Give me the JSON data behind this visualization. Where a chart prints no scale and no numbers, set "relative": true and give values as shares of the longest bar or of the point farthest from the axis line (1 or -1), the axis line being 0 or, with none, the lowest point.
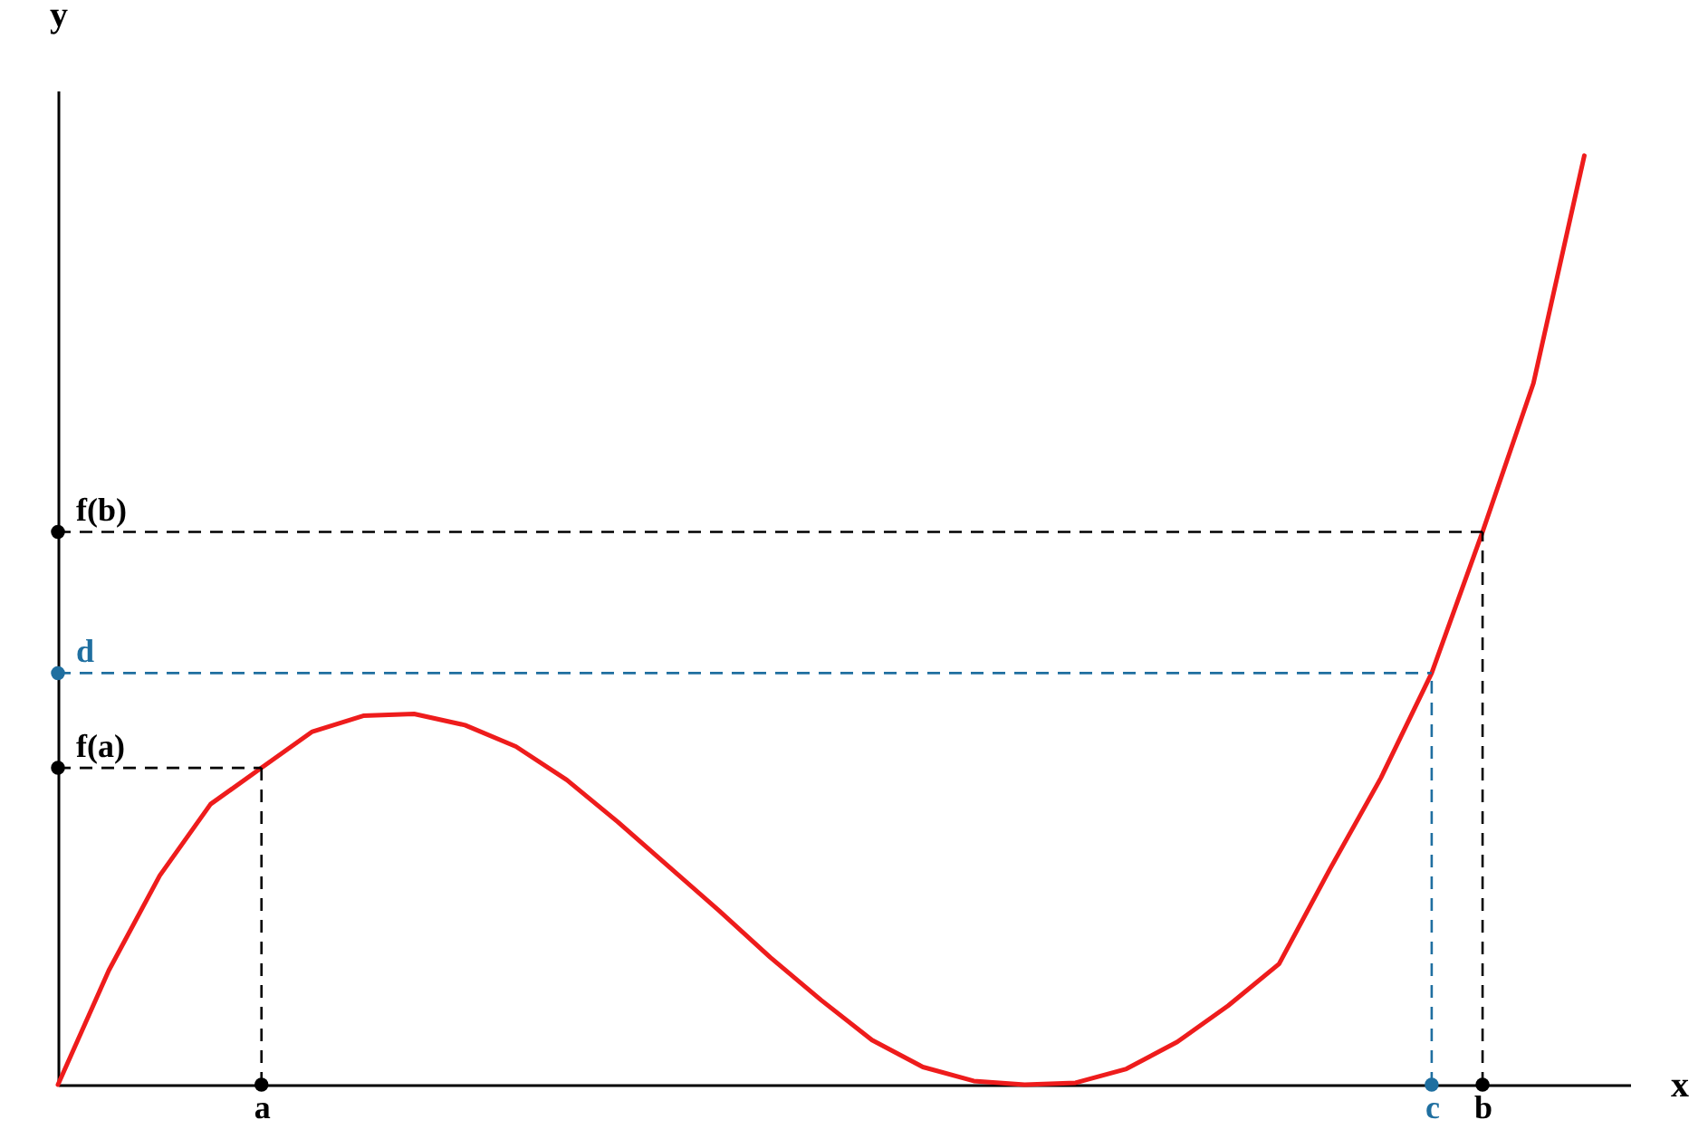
{
  "chart_data": {
    "type": "line",
    "relative": true,
    "xlabel": "x",
    "ylabel": "y",
    "grid": false,
    "marker": "none",
    "line_style": "solid",
    "categories": [
      null,
      null,
      null,
      null,
      "a",
      null,
      null,
      null,
      null,
      null,
      null,
      null,
      null,
      null,
      null,
      null,
      null,
      null,
      null,
      null,
      null,
      null,
      null,
      null,
      null,
      null,
      null,
      "c",
      "b",
      null,
      null
    ],
    "series": [
      {
        "color": "#ee1c1c",
        "values": [
          0,
          0.123,
          0.225,
          0.302,
          0.341,
          0.38,
          0.397,
          0.399,
          0.387,
          0.364,
          0.328,
          0.283,
          0.235,
          0.187,
          0.137,
          0.091,
          0.048,
          0.019,
          0.004,
          0,
          0.002,
          0.017,
          0.046,
          0.085,
          0.13,
          0.232,
          0.33,
          0.443,
          0.595,
          0.755,
          1
        ]
      }
    ],
    "ref_lines": [
      {
        "axis": "y",
        "value": 0.341,
        "label": "f(a)",
        "color": "#000000",
        "line_style": "dashed"
      },
      {
        "axis": "y",
        "value": 0.443,
        "label": "d",
        "color": "#1f6fa0",
        "line_style": "dashed"
      },
      {
        "axis": "y",
        "value": 0.595,
        "label": "f(b)",
        "color": "#000000",
        "line_style": "dashed"
      }
    ]
  }
}
